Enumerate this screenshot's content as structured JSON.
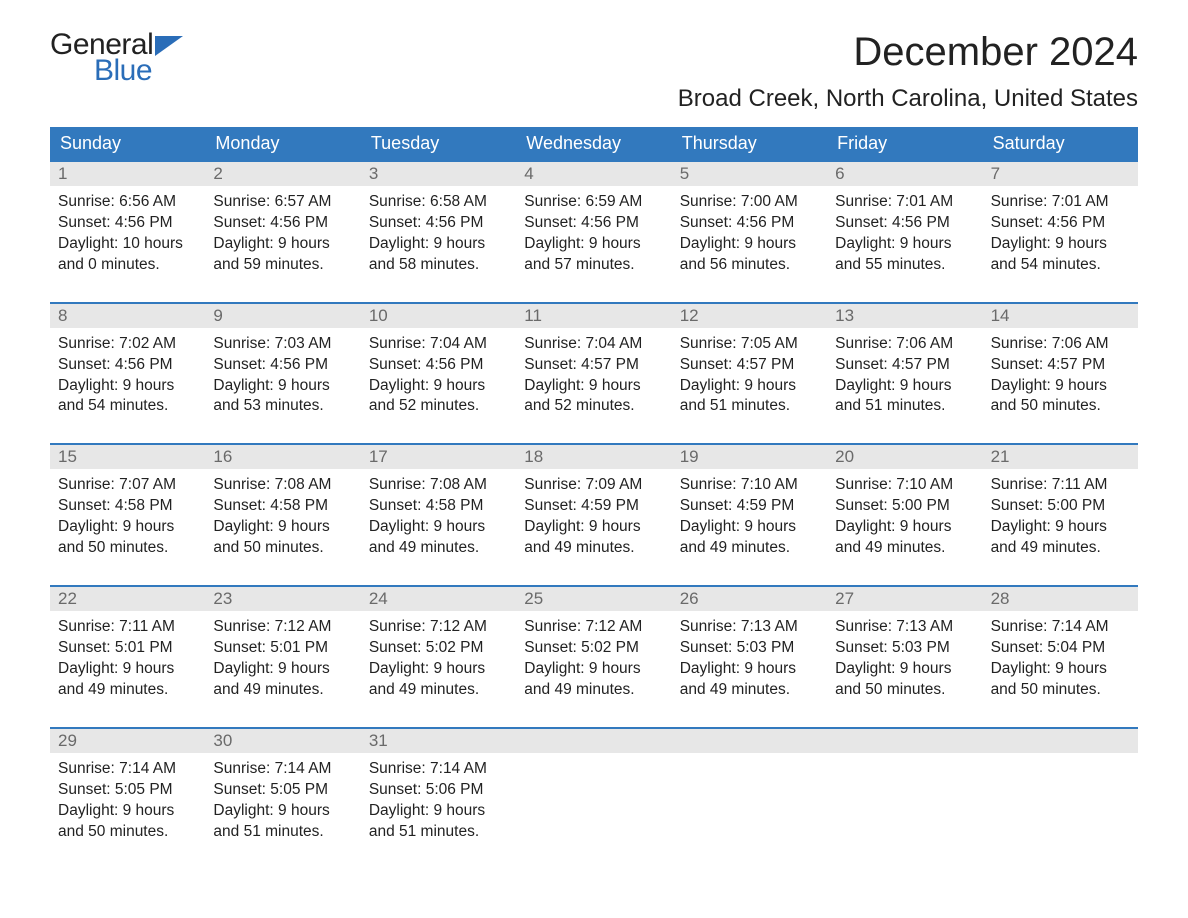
{
  "logo": {
    "line1": "General",
    "line2": "Blue"
  },
  "title": "December 2024",
  "location": "Broad Creek, North Carolina, United States",
  "colors": {
    "header_bg": "#3279be",
    "header_fg": "#ffffff",
    "daynum_bg": "#e7e7e7",
    "daynum_fg": "#6a6a6a",
    "rule": "#3279be",
    "logo_blue": "#2a6db8",
    "text": "#222222",
    "page_bg": "#ffffff"
  },
  "weekdays": [
    "Sunday",
    "Monday",
    "Tuesday",
    "Wednesday",
    "Thursday",
    "Friday",
    "Saturday"
  ],
  "weeks": [
    [
      {
        "n": "1",
        "sunrise": "Sunrise: 6:56 AM",
        "sunset": "Sunset: 4:56 PM",
        "d1": "Daylight: 10 hours",
        "d2": "and 0 minutes."
      },
      {
        "n": "2",
        "sunrise": "Sunrise: 6:57 AM",
        "sunset": "Sunset: 4:56 PM",
        "d1": "Daylight: 9 hours",
        "d2": "and 59 minutes."
      },
      {
        "n": "3",
        "sunrise": "Sunrise: 6:58 AM",
        "sunset": "Sunset: 4:56 PM",
        "d1": "Daylight: 9 hours",
        "d2": "and 58 minutes."
      },
      {
        "n": "4",
        "sunrise": "Sunrise: 6:59 AM",
        "sunset": "Sunset: 4:56 PM",
        "d1": "Daylight: 9 hours",
        "d2": "and 57 minutes."
      },
      {
        "n": "5",
        "sunrise": "Sunrise: 7:00 AM",
        "sunset": "Sunset: 4:56 PM",
        "d1": "Daylight: 9 hours",
        "d2": "and 56 minutes."
      },
      {
        "n": "6",
        "sunrise": "Sunrise: 7:01 AM",
        "sunset": "Sunset: 4:56 PM",
        "d1": "Daylight: 9 hours",
        "d2": "and 55 minutes."
      },
      {
        "n": "7",
        "sunrise": "Sunrise: 7:01 AM",
        "sunset": "Sunset: 4:56 PM",
        "d1": "Daylight: 9 hours",
        "d2": "and 54 minutes."
      }
    ],
    [
      {
        "n": "8",
        "sunrise": "Sunrise: 7:02 AM",
        "sunset": "Sunset: 4:56 PM",
        "d1": "Daylight: 9 hours",
        "d2": "and 54 minutes."
      },
      {
        "n": "9",
        "sunrise": "Sunrise: 7:03 AM",
        "sunset": "Sunset: 4:56 PM",
        "d1": "Daylight: 9 hours",
        "d2": "and 53 minutes."
      },
      {
        "n": "10",
        "sunrise": "Sunrise: 7:04 AM",
        "sunset": "Sunset: 4:56 PM",
        "d1": "Daylight: 9 hours",
        "d2": "and 52 minutes."
      },
      {
        "n": "11",
        "sunrise": "Sunrise: 7:04 AM",
        "sunset": "Sunset: 4:57 PM",
        "d1": "Daylight: 9 hours",
        "d2": "and 52 minutes."
      },
      {
        "n": "12",
        "sunrise": "Sunrise: 7:05 AM",
        "sunset": "Sunset: 4:57 PM",
        "d1": "Daylight: 9 hours",
        "d2": "and 51 minutes."
      },
      {
        "n": "13",
        "sunrise": "Sunrise: 7:06 AM",
        "sunset": "Sunset: 4:57 PM",
        "d1": "Daylight: 9 hours",
        "d2": "and 51 minutes."
      },
      {
        "n": "14",
        "sunrise": "Sunrise: 7:06 AM",
        "sunset": "Sunset: 4:57 PM",
        "d1": "Daylight: 9 hours",
        "d2": "and 50 minutes."
      }
    ],
    [
      {
        "n": "15",
        "sunrise": "Sunrise: 7:07 AM",
        "sunset": "Sunset: 4:58 PM",
        "d1": "Daylight: 9 hours",
        "d2": "and 50 minutes."
      },
      {
        "n": "16",
        "sunrise": "Sunrise: 7:08 AM",
        "sunset": "Sunset: 4:58 PM",
        "d1": "Daylight: 9 hours",
        "d2": "and 50 minutes."
      },
      {
        "n": "17",
        "sunrise": "Sunrise: 7:08 AM",
        "sunset": "Sunset: 4:58 PM",
        "d1": "Daylight: 9 hours",
        "d2": "and 49 minutes."
      },
      {
        "n": "18",
        "sunrise": "Sunrise: 7:09 AM",
        "sunset": "Sunset: 4:59 PM",
        "d1": "Daylight: 9 hours",
        "d2": "and 49 minutes."
      },
      {
        "n": "19",
        "sunrise": "Sunrise: 7:10 AM",
        "sunset": "Sunset: 4:59 PM",
        "d1": "Daylight: 9 hours",
        "d2": "and 49 minutes."
      },
      {
        "n": "20",
        "sunrise": "Sunrise: 7:10 AM",
        "sunset": "Sunset: 5:00 PM",
        "d1": "Daylight: 9 hours",
        "d2": "and 49 minutes."
      },
      {
        "n": "21",
        "sunrise": "Sunrise: 7:11 AM",
        "sunset": "Sunset: 5:00 PM",
        "d1": "Daylight: 9 hours",
        "d2": "and 49 minutes."
      }
    ],
    [
      {
        "n": "22",
        "sunrise": "Sunrise: 7:11 AM",
        "sunset": "Sunset: 5:01 PM",
        "d1": "Daylight: 9 hours",
        "d2": "and 49 minutes."
      },
      {
        "n": "23",
        "sunrise": "Sunrise: 7:12 AM",
        "sunset": "Sunset: 5:01 PM",
        "d1": "Daylight: 9 hours",
        "d2": "and 49 minutes."
      },
      {
        "n": "24",
        "sunrise": "Sunrise: 7:12 AM",
        "sunset": "Sunset: 5:02 PM",
        "d1": "Daylight: 9 hours",
        "d2": "and 49 minutes."
      },
      {
        "n": "25",
        "sunrise": "Sunrise: 7:12 AM",
        "sunset": "Sunset: 5:02 PM",
        "d1": "Daylight: 9 hours",
        "d2": "and 49 minutes."
      },
      {
        "n": "26",
        "sunrise": "Sunrise: 7:13 AM",
        "sunset": "Sunset: 5:03 PM",
        "d1": "Daylight: 9 hours",
        "d2": "and 49 minutes."
      },
      {
        "n": "27",
        "sunrise": "Sunrise: 7:13 AM",
        "sunset": "Sunset: 5:03 PM",
        "d1": "Daylight: 9 hours",
        "d2": "and 50 minutes."
      },
      {
        "n": "28",
        "sunrise": "Sunrise: 7:14 AM",
        "sunset": "Sunset: 5:04 PM",
        "d1": "Daylight: 9 hours",
        "d2": "and 50 minutes."
      }
    ],
    [
      {
        "n": "29",
        "sunrise": "Sunrise: 7:14 AM",
        "sunset": "Sunset: 5:05 PM",
        "d1": "Daylight: 9 hours",
        "d2": "and 50 minutes."
      },
      {
        "n": "30",
        "sunrise": "Sunrise: 7:14 AM",
        "sunset": "Sunset: 5:05 PM",
        "d1": "Daylight: 9 hours",
        "d2": "and 51 minutes."
      },
      {
        "n": "31",
        "sunrise": "Sunrise: 7:14 AM",
        "sunset": "Sunset: 5:06 PM",
        "d1": "Daylight: 9 hours",
        "d2": "and 51 minutes."
      },
      null,
      null,
      null,
      null
    ]
  ]
}
